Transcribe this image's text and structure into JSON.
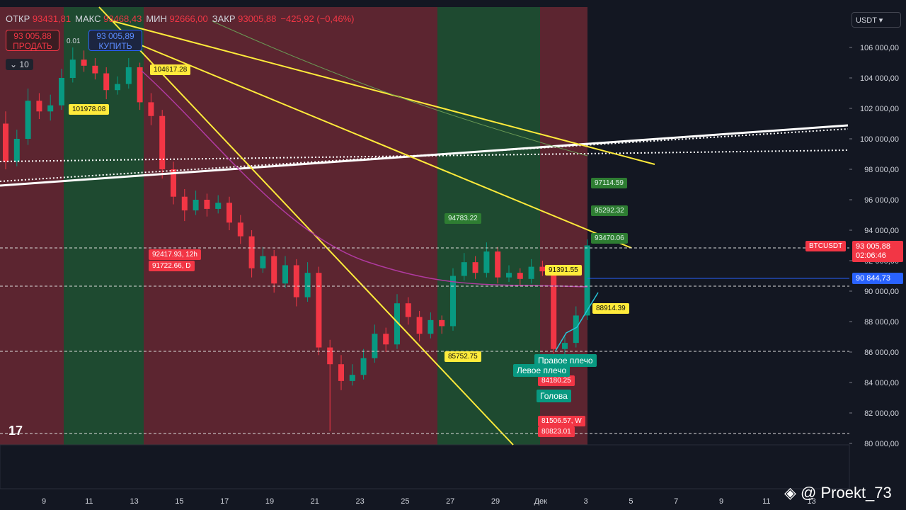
{
  "header": {
    "open_label": "ОТКР",
    "open": "93431,81",
    "high_label": "МАКС",
    "high": "93468,43",
    "low_label": "МИН",
    "low": "92666,00",
    "close_label": "ЗАКР",
    "close": "93005,88",
    "change": "−425,92 (−0,46%)"
  },
  "trade": {
    "sell_price": "93 005,88",
    "sell_label": "ПРОДАТЬ",
    "spread": "0.01",
    "buy_price": "93 005,89",
    "buy_label": "КУПИТЬ",
    "qty": "10"
  },
  "currency": "USDT",
  "price_axis": {
    "ticks": [
      {
        "value": 80000,
        "label": "80 000,00"
      },
      {
        "value": 82000,
        "label": "82 000,00"
      },
      {
        "value": 84000,
        "label": "84 000,00"
      },
      {
        "value": 86000,
        "label": "86 000,00"
      },
      {
        "value": 88000,
        "label": "88 000,00"
      },
      {
        "value": 90000,
        "label": "90 000,00"
      },
      {
        "value": 92000,
        "label": "92 000,00"
      },
      {
        "value": 94000,
        "label": "94 000,00"
      },
      {
        "value": 96000,
        "label": "96 000,00"
      },
      {
        "value": 98000,
        "label": "98 000,00"
      },
      {
        "value": 100000,
        "label": "100 000,00"
      },
      {
        "value": 102000,
        "label": "102 000,00"
      },
      {
        "value": 104000,
        "label": "104 000,00"
      },
      {
        "value": 106000,
        "label": "106 000,00"
      }
    ]
  },
  "date_axis": [
    "9",
    "11",
    "13",
    "15",
    "17",
    "19",
    "21",
    "23",
    "25",
    "27",
    "29",
    "Дек",
    "3",
    "5",
    "7",
    "9",
    "11",
    "13"
  ],
  "symbol_tag": {
    "symbol": "BTCUSDT",
    "price": "93 005,88",
    "countdown": "02:06:46",
    "line_price": "90 844,73"
  },
  "candles": [
    [
      101000,
      101800,
      98000,
      98500
    ],
    [
      98500,
      100600,
      98200,
      100000
    ],
    [
      100000,
      103300,
      99600,
      102500
    ],
    [
      102500,
      103000,
      101300,
      101800
    ],
    [
      101800,
      102900,
      101200,
      102200
    ],
    [
      102200,
      104600,
      101900,
      104000
    ],
    [
      104000,
      106000,
      103700,
      105200
    ],
    [
      105200,
      105800,
      104400,
      104800
    ],
    [
      104800,
      105300,
      103900,
      104300
    ],
    [
      104300,
      104700,
      102600,
      103200
    ],
    [
      103200,
      104100,
      102900,
      103600
    ],
    [
      103600,
      105300,
      103300,
      104700
    ],
    [
      104700,
      105000,
      101900,
      102400
    ],
    [
      102400,
      103000,
      100900,
      101500
    ],
    [
      101500,
      101900,
      97400,
      98000
    ],
    [
      98000,
      98500,
      95700,
      96200
    ],
    [
      96200,
      96700,
      94600,
      95300
    ],
    [
      95300,
      96600,
      95000,
      96000
    ],
    [
      96000,
      96400,
      94900,
      95400
    ],
    [
      95400,
      96300,
      95100,
      95800
    ],
    [
      95800,
      96200,
      94000,
      94500
    ],
    [
      94500,
      95000,
      93100,
      93600
    ],
    [
      93600,
      94000,
      90900,
      91500
    ],
    [
      91500,
      92900,
      91200,
      92300
    ],
    [
      92300,
      92700,
      89900,
      90500
    ],
    [
      90500,
      92300,
      90200,
      91700
    ],
    [
      91700,
      92100,
      89000,
      89600
    ],
    [
      89600,
      91900,
      89300,
      91200
    ],
    [
      91200,
      91600,
      85800,
      86300
    ],
    [
      86300,
      86800,
      80800,
      85200
    ],
    [
      85200,
      85800,
      83500,
      84100
    ],
    [
      84100,
      85200,
      83800,
      84500
    ],
    [
      84500,
      86200,
      84200,
      85600
    ],
    [
      85600,
      87800,
      85300,
      87200
    ],
    [
      87200,
      87600,
      86000,
      86500
    ],
    [
      86500,
      89800,
      86200,
      89200
    ],
    [
      89200,
      89600,
      87800,
      88300
    ],
    [
      88300,
      88700,
      86700,
      87200
    ],
    [
      87200,
      88600,
      86900,
      88100
    ],
    [
      88100,
      88400,
      87200,
      87700
    ],
    [
      87700,
      91500,
      87400,
      91000
    ],
    [
      91000,
      92500,
      90700,
      91900
    ],
    [
      91900,
      92300,
      90800,
      91200
    ],
    [
      91200,
      93200,
      90900,
      92600
    ],
    [
      92600,
      92900,
      90500,
      90900
    ],
    [
      90900,
      91700,
      90600,
      91200
    ],
    [
      91200,
      91500,
      90400,
      90800
    ],
    [
      90800,
      92100,
      90500,
      91600
    ],
    [
      91600,
      92000,
      91000,
      91300
    ],
    [
      91300,
      91500,
      85900,
      86200
    ],
    [
      86200,
      87000,
      84200,
      86600
    ],
    [
      86600,
      89000,
      86300,
      88400
    ],
    [
      88400,
      93400,
      88100,
      93000
    ]
  ],
  "labels": {
    "yellow": [
      "104617.28",
      "101978.08",
      "91391.55",
      "88914.39",
      "85752.75"
    ],
    "green": [
      "97114.59",
      "95292.32",
      "94783.22",
      "93470.06"
    ],
    "red": [
      "92417.93, 12h",
      "91722.66, D",
      "84180.25",
      "81506.57, W",
      "80823.01"
    ]
  },
  "pattern": {
    "right": "Правое плечо",
    "left": "Левое плечо",
    "head": "Голова"
  },
  "watermark": "@ Proekt_73"
}
